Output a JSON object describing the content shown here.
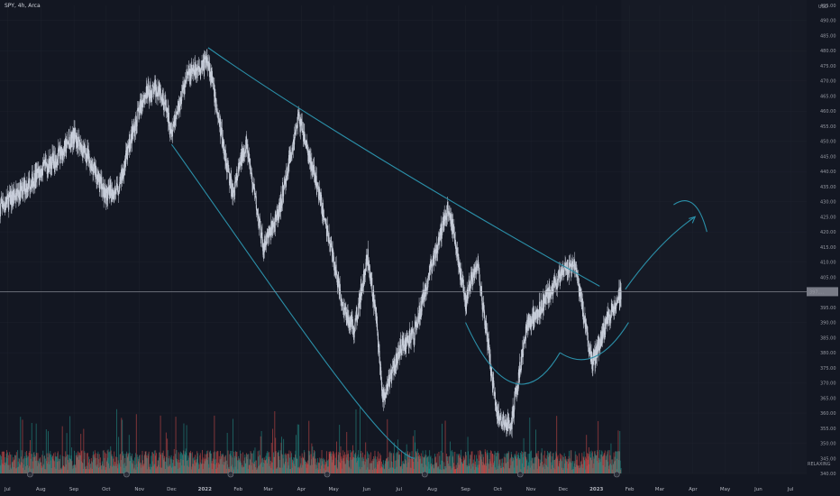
{
  "header": {
    "symbol_label": "SPY, 4h, Arca"
  },
  "price_axis": {
    "currency": "USD",
    "current_price_label": "397.…",
    "watermark": "RELAXING"
  },
  "colors": {
    "background": "#131722",
    "future_zone": "#161a25",
    "grid": "#1e222d",
    "candle": "#c9cfdb",
    "trendline": "#2b8fa8",
    "vol_up": "#26a69a",
    "vol_down": "#ef5350",
    "price_line": "#9598a1"
  },
  "chart_data": {
    "type": "candlestick",
    "title": "",
    "xlabel": "",
    "ylabel": "USD",
    "ylim": [
      340,
      495
    ],
    "y_ticks": [
      340,
      345,
      350,
      355,
      360,
      365,
      370,
      375,
      380,
      385,
      390,
      395,
      400,
      405,
      410,
      415,
      420,
      425,
      430,
      435,
      440,
      445,
      450,
      455,
      460,
      465,
      470,
      475,
      480,
      485,
      490,
      495
    ],
    "x_tick_labels": [
      "Jul",
      "Aug",
      "Sep",
      "Oct",
      "Nov",
      "Dec",
      "2022",
      "Feb",
      "Mar",
      "Apr",
      "May",
      "Jun",
      "Jul",
      "Aug",
      "Sep",
      "Oct",
      "Nov",
      "Dec",
      "2023",
      "Feb",
      "Mar",
      "Apr",
      "May",
      "Jun",
      "Jul"
    ],
    "x_tick_dates": [
      "2021-07",
      "2021-08",
      "2021-09",
      "2021-10",
      "2021-11",
      "2021-12",
      "2022-01",
      "2022-02",
      "2022-03",
      "2022-04",
      "2022-05",
      "2022-06",
      "2022-07",
      "2022-08",
      "2022-09",
      "2022-10",
      "2022-11",
      "2022-12",
      "2023-01",
      "2023-02",
      "2023-03",
      "2023-04",
      "2023-05",
      "2023-06",
      "2023-07"
    ],
    "last_date": "2023-01-24",
    "last_close": 400.2,
    "price_path": [
      [
        "2021-06-01",
        416
      ],
      [
        "2021-06-20",
        427
      ],
      [
        "2021-07-15",
        434
      ],
      [
        "2021-08-01",
        440
      ],
      [
        "2021-08-20",
        446
      ],
      [
        "2021-09-01",
        452
      ],
      [
        "2021-09-15",
        444
      ],
      [
        "2021-10-01",
        432
      ],
      [
        "2021-10-12",
        434
      ],
      [
        "2021-10-25",
        452
      ],
      [
        "2021-11-05",
        465
      ],
      [
        "2021-11-20",
        468
      ],
      [
        "2021-12-01",
        454
      ],
      [
        "2021-12-15",
        471
      ],
      [
        "2022-01-04",
        477
      ],
      [
        "2022-01-15",
        455
      ],
      [
        "2022-01-27",
        432
      ],
      [
        "2022-02-08",
        450
      ],
      [
        "2022-02-24",
        415
      ],
      [
        "2022-03-10",
        425
      ],
      [
        "2022-03-29",
        458
      ],
      [
        "2022-04-15",
        436
      ],
      [
        "2022-04-29",
        414
      ],
      [
        "2022-05-10",
        395
      ],
      [
        "2022-05-20",
        388
      ],
      [
        "2022-06-02",
        412
      ],
      [
        "2022-06-10",
        390
      ],
      [
        "2022-06-16",
        364
      ],
      [
        "2022-07-01",
        381
      ],
      [
        "2022-07-15",
        386
      ],
      [
        "2022-08-01",
        410
      ],
      [
        "2022-08-16",
        429
      ],
      [
        "2022-09-01",
        397
      ],
      [
        "2022-09-12",
        410
      ],
      [
        "2022-09-30",
        360
      ],
      [
        "2022-10-13",
        355
      ],
      [
        "2022-10-28",
        389
      ],
      [
        "2022-11-10",
        395
      ],
      [
        "2022-11-30",
        407
      ],
      [
        "2022-12-13",
        408
      ],
      [
        "2022-12-28",
        376
      ],
      [
        "2023-01-10",
        390
      ],
      [
        "2023-01-24",
        400
      ]
    ],
    "volume": {
      "note": "4h volume histogram",
      "max_relative": 1.0
    },
    "drawings": [
      {
        "name": "upper-trendline",
        "points": [
          [
            "2022-01-04",
            481
          ],
          [
            "2022-03-29",
            460
          ],
          [
            "2022-08-16",
            430
          ],
          [
            "2023-01-04",
            402
          ]
        ]
      },
      {
        "name": "lower-trendline",
        "points": [
          [
            "2021-12-01",
            449
          ],
          [
            "2022-03-01",
            404
          ],
          [
            "2022-06-15",
            347
          ],
          [
            "2022-07-15",
            345
          ]
        ]
      },
      {
        "name": "cup-curve",
        "points": [
          [
            "2022-09-01",
            390
          ],
          [
            "2022-10-13",
            357
          ],
          [
            "2022-11-15",
            372
          ],
          [
            "2022-11-28",
            380
          ]
        ]
      },
      {
        "name": "handle-curve",
        "points": [
          [
            "2022-11-28",
            380
          ],
          [
            "2022-12-20",
            375
          ],
          [
            "2023-01-10",
            378
          ],
          [
            "2023-01-31",
            390
          ]
        ]
      },
      {
        "name": "projection-arrow",
        "points": [
          [
            "2023-01-28",
            401
          ],
          [
            "2023-03-01",
            417
          ],
          [
            "2023-04-03",
            425
          ]
        ]
      },
      {
        "name": "projection-curve",
        "points": [
          [
            "2023-03-14",
            429
          ],
          [
            "2023-04-04",
            434
          ],
          [
            "2023-04-14",
            420
          ]
        ]
      }
    ]
  }
}
